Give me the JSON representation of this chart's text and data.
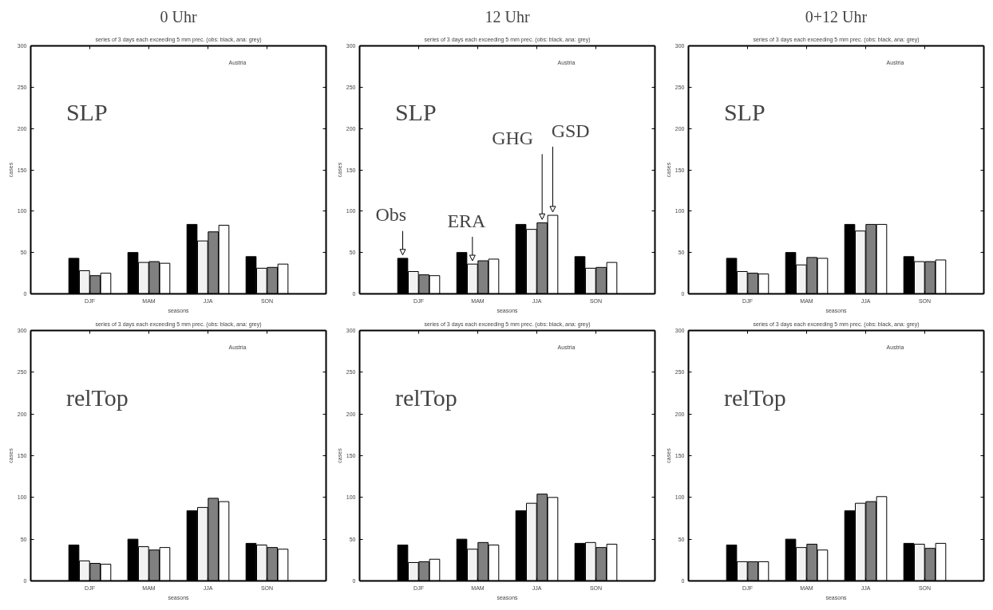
{
  "chart_data": [
    {
      "type": "bar",
      "title": "0 Uhr",
      "subtitle": "series of 3 days each exceeding 5 mm prec. (obs: black, ana: grey)",
      "xlabel": "seasons",
      "ylabel": "cases",
      "categories": [
        "DJF",
        "MAM",
        "JJA",
        "SON"
      ],
      "ylim": [
        0,
        300
      ],
      "yticks": [
        0,
        50,
        100,
        150,
        200,
        250,
        300
      ],
      "grid": false,
      "annotations": [
        "Austria",
        "SLP"
      ],
      "series": [
        {
          "color": "#000000",
          "values": [
            43,
            50,
            84,
            45
          ]
        },
        {
          "color": "#f2f2f2",
          "values": [
            28,
            38,
            64,
            31
          ]
        },
        {
          "color": "#808080",
          "values": [
            22,
            39,
            75,
            32
          ]
        },
        {
          "color": "#ffffff",
          "values": [
            25,
            37,
            83,
            36
          ]
        }
      ]
    },
    {
      "type": "bar",
      "title": "12 Uhr",
      "subtitle": "series of 3 days each exceeding 5 mm prec. (obs: black, ana: grey)",
      "xlabel": "seasons",
      "ylabel": "cases",
      "categories": [
        "DJF",
        "MAM",
        "JJA",
        "SON"
      ],
      "ylim": [
        0,
        300
      ],
      "yticks": [
        0,
        50,
        100,
        150,
        200,
        250,
        300
      ],
      "grid": false,
      "annotations": [
        "Austria",
        "SLP",
        "Obs",
        "ERA",
        "GHG",
        "GSD"
      ],
      "series": [
        {
          "color": "#000000",
          "values": [
            43,
            50,
            84,
            45
          ]
        },
        {
          "color": "#f2f2f2",
          "values": [
            27,
            36,
            78,
            31
          ]
        },
        {
          "color": "#808080",
          "values": [
            23,
            40,
            86,
            32
          ]
        },
        {
          "color": "#ffffff",
          "values": [
            22,
            42,
            95,
            38
          ]
        }
      ]
    },
    {
      "type": "bar",
      "title": "0+12 Uhr",
      "subtitle": "series of 3 days each exceeding 5 mm prec. (obs: black, ana: grey)",
      "xlabel": "seasons",
      "ylabel": "cases",
      "categories": [
        "DJF",
        "MAM",
        "JJA",
        "SON"
      ],
      "ylim": [
        0,
        300
      ],
      "yticks": [
        0,
        50,
        100,
        150,
        200,
        250,
        300
      ],
      "grid": false,
      "annotations": [
        "Austria",
        "SLP"
      ],
      "series": [
        {
          "color": "#000000",
          "values": [
            43,
            50,
            84,
            45
          ]
        },
        {
          "color": "#f2f2f2",
          "values": [
            27,
            35,
            76,
            39
          ]
        },
        {
          "color": "#808080",
          "values": [
            25,
            44,
            84,
            39
          ]
        },
        {
          "color": "#ffffff",
          "values": [
            24,
            43,
            84,
            41
          ]
        }
      ]
    },
    {
      "type": "bar",
      "title": "series of 3 days each exceeding 5 mm prec. (obs: black, ana: grey)",
      "xlabel": "seasons",
      "ylabel": "cases",
      "categories": [
        "DJF",
        "MAM",
        "JJA",
        "SON"
      ],
      "ylim": [
        0,
        300
      ],
      "yticks": [
        0,
        50,
        100,
        150,
        200,
        250,
        300
      ],
      "grid": false,
      "annotations": [
        "Austria",
        "relTop"
      ],
      "series": [
        {
          "color": "#000000",
          "values": [
            43,
            50,
            84,
            45
          ]
        },
        {
          "color": "#f2f2f2",
          "values": [
            24,
            41,
            88,
            43
          ]
        },
        {
          "color": "#808080",
          "values": [
            21,
            37,
            99,
            40
          ]
        },
        {
          "color": "#ffffff",
          "values": [
            20,
            40,
            95,
            38
          ]
        }
      ]
    },
    {
      "type": "bar",
      "title": "series of 3 days each exceeding 5 mm prec. (obs: black, ana: grey)",
      "xlabel": "seasons",
      "ylabel": "cases",
      "categories": [
        "DJF",
        "MAM",
        "JJA",
        "SON"
      ],
      "ylim": [
        0,
        300
      ],
      "yticks": [
        0,
        50,
        100,
        150,
        200,
        250,
        300
      ],
      "grid": false,
      "annotations": [
        "Austria",
        "relTop"
      ],
      "series": [
        {
          "color": "#000000",
          "values": [
            43,
            50,
            84,
            45
          ]
        },
        {
          "color": "#f2f2f2",
          "values": [
            22,
            38,
            93,
            46
          ]
        },
        {
          "color": "#808080",
          "values": [
            23,
            46,
            104,
            40
          ]
        },
        {
          "color": "#ffffff",
          "values": [
            26,
            43,
            100,
            44
          ]
        }
      ]
    },
    {
      "type": "bar",
      "title": "series of 3 days each exceeding 5 mm prec. (obs: black, ana: grey)",
      "xlabel": "seasons",
      "ylabel": "cases",
      "categories": [
        "DJF",
        "MAM",
        "JJA",
        "SON"
      ],
      "ylim": [
        0,
        300
      ],
      "yticks": [
        0,
        50,
        100,
        150,
        200,
        250,
        300
      ],
      "grid": false,
      "annotations": [
        "Austria",
        "relTop"
      ],
      "series": [
        {
          "color": "#000000",
          "values": [
            43,
            50,
            84,
            45
          ]
        },
        {
          "color": "#f2f2f2",
          "values": [
            23,
            40,
            93,
            44
          ]
        },
        {
          "color": "#808080",
          "values": [
            23,
            44,
            95,
            39
          ]
        },
        {
          "color": "#ffffff",
          "values": [
            23,
            37,
            101,
            45
          ]
        }
      ]
    }
  ]
}
